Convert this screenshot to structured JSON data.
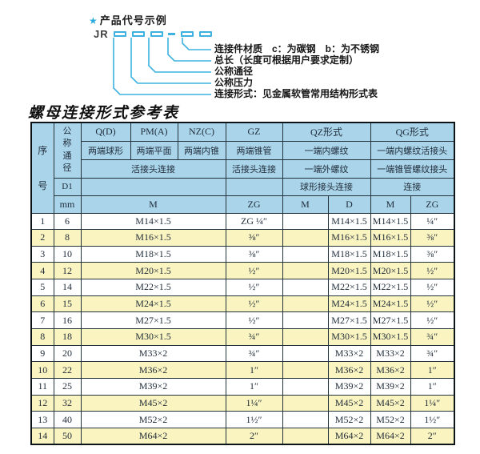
{
  "diagram": {
    "star": "★",
    "title": "产品代号示例",
    "code_prefix": "JR",
    "labels": [
      "连接件材质　c：为碳钢　b：为不锈钢",
      "总长（长度可根据用户要求定制）",
      "公称通径",
      "公称压力",
      "连接形式：见金属软管常用结构形式表"
    ]
  },
  "table": {
    "title": "螺母连接形式参考表",
    "header": {
      "seq": "序号",
      "dn": "公称通径",
      "forms": [
        "Q(D)",
        "PM(A)",
        "NZ(C)",
        "GZ",
        "QZ形式",
        "QG形式"
      ],
      "ends": [
        "两端球形",
        "两端平面",
        "两端内锥",
        "两端锥管",
        "一端内螺纹",
        "一端内螺纹活接头"
      ],
      "conn": [
        "活接头连接",
        "活接头连接",
        "一端外螺纹",
        "一端锥管螺纹接头"
      ],
      "d1": "D1",
      "sub_conn": [
        "球形接头连接",
        "连接"
      ],
      "units": [
        "mm",
        "M",
        "ZG",
        "M",
        "D",
        "M",
        "ZG"
      ]
    },
    "rows": [
      {
        "seq": "1",
        "dn": "6",
        "m": "M14×1.5",
        "gz": "ZG ¼″",
        "qz_m": "",
        "qz_d": "M14×1.5",
        "qg_m": "M14×1.5",
        "qg_zg": "¼″"
      },
      {
        "seq": "2",
        "dn": "8",
        "m": "M16×1.5",
        "gz": "⅜″",
        "qz_m": "",
        "qz_d": "M16×1.5",
        "qg_m": "M16×1.5",
        "qg_zg": "⅜″"
      },
      {
        "seq": "3",
        "dn": "10",
        "m": "M18×1.5",
        "gz": "⅜″",
        "qz_m": "",
        "qz_d": "M18×1.5",
        "qg_m": "M18×1.5",
        "qg_zg": "⅜″"
      },
      {
        "seq": "4",
        "dn": "12",
        "m": "M20×1.5",
        "gz": "½″",
        "qz_m": "",
        "qz_d": "M20×1.5",
        "qg_m": "M20×1.5",
        "qg_zg": "½″"
      },
      {
        "seq": "5",
        "dn": "14",
        "m": "M22×1.5",
        "gz": "½″",
        "qz_m": "",
        "qz_d": "M22×1.5",
        "qg_m": "M22×1.5",
        "qg_zg": "½″"
      },
      {
        "seq": "6",
        "dn": "15",
        "m": "M24×1.5",
        "gz": "½″",
        "qz_m": "",
        "qz_d": "M24×1.5",
        "qg_m": "M24×1.5",
        "qg_zg": "½″"
      },
      {
        "seq": "7",
        "dn": "16",
        "m": "M27×1.5",
        "gz": "½″",
        "qz_m": "",
        "qz_d": "M27×1.5",
        "qg_m": "M27×1.5",
        "qg_zg": "½″"
      },
      {
        "seq": "8",
        "dn": "18",
        "m": "M30×1.5",
        "gz": "¾″",
        "qz_m": "",
        "qz_d": "M30×1.5",
        "qg_m": "M30×1.5",
        "qg_zg": "¾″"
      },
      {
        "seq": "9",
        "dn": "20",
        "m": "M33×2",
        "gz": "¾″",
        "qz_m": "",
        "qz_d": "M33×2",
        "qg_m": "M33×2",
        "qg_zg": "¾″"
      },
      {
        "seq": "10",
        "dn": "22",
        "m": "M36×2",
        "gz": "1″",
        "qz_m": "",
        "qz_d": "M36×2",
        "qg_m": "M36×2",
        "qg_zg": "1″"
      },
      {
        "seq": "11",
        "dn": "25",
        "m": "M39×2",
        "gz": "1″",
        "qz_m": "",
        "qz_d": "M39×2",
        "qg_m": "M39×2",
        "qg_zg": "1″"
      },
      {
        "seq": "12",
        "dn": "32",
        "m": "M45×2",
        "gz": "1¼″",
        "qz_m": "",
        "qz_d": "M45×2",
        "qg_m": "M45×2",
        "qg_zg": "1¼″"
      },
      {
        "seq": "13",
        "dn": "40",
        "m": "M52×2",
        "gz": "1½″",
        "qz_m": "",
        "qz_d": "M52×2",
        "qg_m": "M52×2",
        "qg_zg": "1½″"
      },
      {
        "seq": "14",
        "dn": "50",
        "m": "M64×2",
        "gz": "2″",
        "qz_m": "",
        "qz_d": "M64×2",
        "qg_m": "M64×2",
        "qg_zg": "2″"
      }
    ]
  },
  "colors": {
    "header_bg": "#a9d4ea",
    "row_alt_bg": "#faf4c0",
    "accent_line": "#3db2e0",
    "text": "#1f2b38"
  }
}
